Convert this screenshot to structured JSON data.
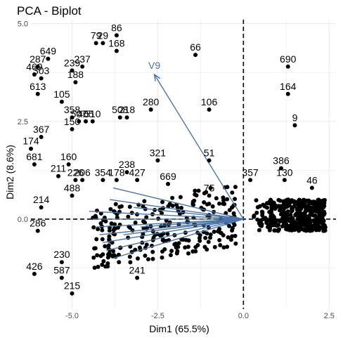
{
  "chart_data": {
    "type": "scatter",
    "title": "PCA - Biplot",
    "xlabel": "Dim1 (65.5%)",
    "ylabel": "Dim2 (8.6%)",
    "xlim": [
      -6.2,
      2.7
    ],
    "ylim": [
      -2.3,
      5.1
    ],
    "x_ticks": [
      -5.0,
      -2.5,
      0.0,
      2.5
    ],
    "y_ticks": [
      0.0,
      2.5,
      5.0
    ],
    "x_tick_labels": [
      "-5.0",
      "-2.5",
      "0.0",
      "2.5"
    ],
    "y_tick_labels": [
      "0.0",
      "2.5",
      "5.0"
    ],
    "grid": true,
    "reference_lines": {
      "x": 0,
      "y": 0,
      "style": "dashed"
    },
    "point_color": "#000000",
    "arrow_color": "#4a75a8",
    "labeled_points": [
      {
        "label": "86",
        "x": -3.7,
        "y": 4.7
      },
      {
        "label": "79",
        "x": -4.3,
        "y": 4.5
      },
      {
        "label": "29",
        "x": -4.1,
        "y": 4.5
      },
      {
        "label": "168",
        "x": -3.7,
        "y": 4.3
      },
      {
        "label": "66",
        "x": -1.4,
        "y": 4.2
      },
      {
        "label": "690",
        "x": 1.3,
        "y": 3.9
      },
      {
        "label": "649",
        "x": -5.7,
        "y": 4.1
      },
      {
        "label": "287",
        "x": -6.0,
        "y": 3.9
      },
      {
        "label": "239",
        "x": -5.0,
        "y": 3.8
      },
      {
        "label": "237",
        "x": -4.7,
        "y": 3.9
      },
      {
        "label": "469",
        "x": -6.1,
        "y": 3.7
      },
      {
        "label": "303",
        "x": -5.9,
        "y": 3.6
      },
      {
        "label": "188",
        "x": -4.9,
        "y": 3.5
      },
      {
        "label": "164",
        "x": 1.3,
        "y": 3.2
      },
      {
        "label": "613",
        "x": -6.0,
        "y": 3.2
      },
      {
        "label": "105",
        "x": -5.3,
        "y": 3.0
      },
      {
        "label": "280",
        "x": -2.7,
        "y": 2.8
      },
      {
        "label": "106",
        "x": -1.0,
        "y": 2.8
      },
      {
        "label": "358",
        "x": -5.0,
        "y": 2.6
      },
      {
        "label": "507",
        "x": -4.8,
        "y": 2.5
      },
      {
        "label": "405",
        "x": -4.6,
        "y": 2.5
      },
      {
        "label": "510",
        "x": -4.4,
        "y": 2.5
      },
      {
        "label": "508",
        "x": -3.6,
        "y": 2.6
      },
      {
        "label": "218",
        "x": -3.4,
        "y": 2.6
      },
      {
        "label": "9",
        "x": 1.5,
        "y": 2.4
      },
      {
        "label": "150",
        "x": -5.0,
        "y": 2.3
      },
      {
        "label": "367",
        "x": -5.9,
        "y": 2.1
      },
      {
        "label": "174",
        "x": -6.2,
        "y": 1.8
      },
      {
        "label": "321",
        "x": -2.5,
        "y": 1.5
      },
      {
        "label": "51",
        "x": -1.0,
        "y": 1.5
      },
      {
        "label": "681",
        "x": -6.1,
        "y": 1.4
      },
      {
        "label": "160",
        "x": -5.1,
        "y": 1.4
      },
      {
        "label": "238",
        "x": -3.4,
        "y": 1.2
      },
      {
        "label": "386",
        "x": 1.1,
        "y": 1.3
      },
      {
        "label": "211",
        "x": -5.4,
        "y": 1.1
      },
      {
        "label": "226",
        "x": -4.9,
        "y": 1.0
      },
      {
        "label": "206",
        "x": -4.7,
        "y": 1.0
      },
      {
        "label": "354",
        "x": -4.1,
        "y": 1.0
      },
      {
        "label": "178",
        "x": -3.7,
        "y": 1.0
      },
      {
        "label": "427",
        "x": -3.1,
        "y": 1.0
      },
      {
        "label": "669",
        "x": -2.2,
        "y": 0.9
      },
      {
        "label": "357",
        "x": 0.2,
        "y": 1.0
      },
      {
        "label": "130",
        "x": 1.2,
        "y": 1.0
      },
      {
        "label": "46",
        "x": 2.0,
        "y": 0.8
      },
      {
        "label": "75",
        "x": -1.0,
        "y": 0.6
      },
      {
        "label": "488",
        "x": -5.0,
        "y": 0.6
      },
      {
        "label": "214",
        "x": -5.9,
        "y": 0.3
      },
      {
        "label": "286",
        "x": -6.0,
        "y": -0.3
      },
      {
        "label": "426",
        "x": -6.1,
        "y": -1.4
      },
      {
        "label": "587",
        "x": -5.3,
        "y": -1.5
      },
      {
        "label": "230",
        "x": -5.3,
        "y": -1.1
      },
      {
        "label": "215",
        "x": -5.0,
        "y": -1.9
      },
      {
        "label": "241",
        "x": -3.1,
        "y": -1.5
      }
    ],
    "unlabeled_cluster": {
      "x_range": [
        0.3,
        2.4
      ],
      "y_range": [
        -0.3,
        0.5
      ]
    },
    "variables": [
      {
        "label": "V9",
        "x": -2.6,
        "y": 3.7
      }
    ],
    "unlabeled_arrows": [
      {
        "x": -4.5,
        "y": 0.2
      },
      {
        "x": -4.4,
        "y": 0.0
      },
      {
        "x": -4.3,
        "y": -0.2
      },
      {
        "x": -4.2,
        "y": -0.4
      },
      {
        "x": -4.1,
        "y": -0.6
      },
      {
        "x": -4.0,
        "y": -0.8
      },
      {
        "x": -3.8,
        "y": -1.0
      },
      {
        "x": -3.9,
        "y": 0.5
      },
      {
        "x": -3.8,
        "y": 0.8
      },
      {
        "x": -3.5,
        "y": -0.4
      },
      {
        "x": -3.2,
        "y": 0.3
      },
      {
        "x": -3.0,
        "y": -0.2
      }
    ]
  }
}
